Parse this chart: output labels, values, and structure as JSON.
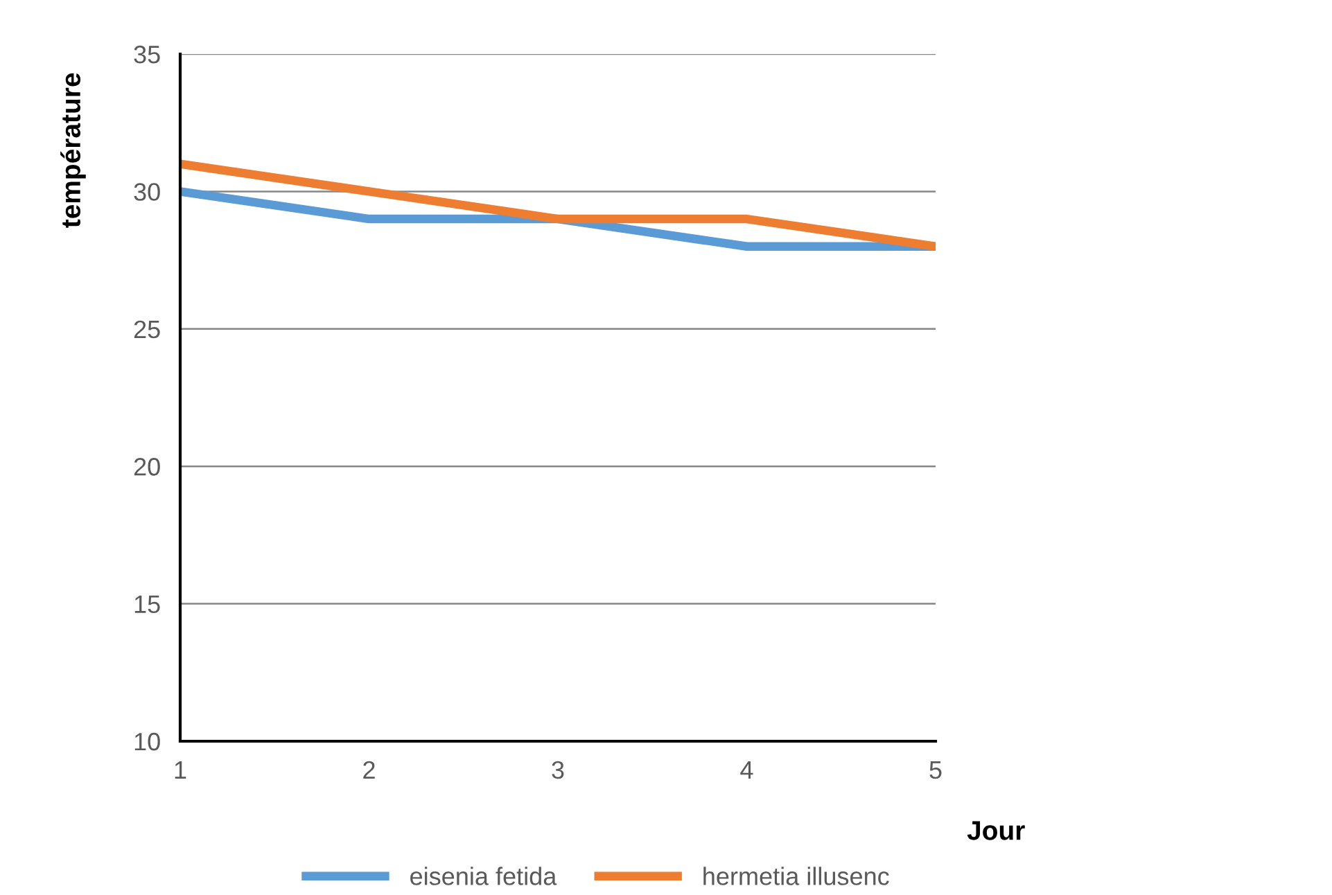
{
  "chart_data": {
    "type": "line",
    "xlabel": "Jour",
    "ylabel": "température",
    "x": [
      1,
      2,
      3,
      4,
      5
    ],
    "series": [
      {
        "name": "eisenia fetida",
        "color": "#5b9bd5",
        "values": [
          30,
          29,
          29,
          28,
          28
        ]
      },
      {
        "name": "hermetia illusenc",
        "color": "#ed7d31",
        "values": [
          31,
          30,
          29,
          29,
          28
        ]
      }
    ],
    "xlim": [
      1,
      5
    ],
    "xticks": [
      1,
      2,
      3,
      4,
      5
    ],
    "ylim": [
      10,
      35
    ],
    "yticks": [
      10,
      15,
      20,
      25,
      30,
      35
    ],
    "grid": "y",
    "legend": "bottom",
    "marker": "none",
    "line_style": "solid"
  }
}
